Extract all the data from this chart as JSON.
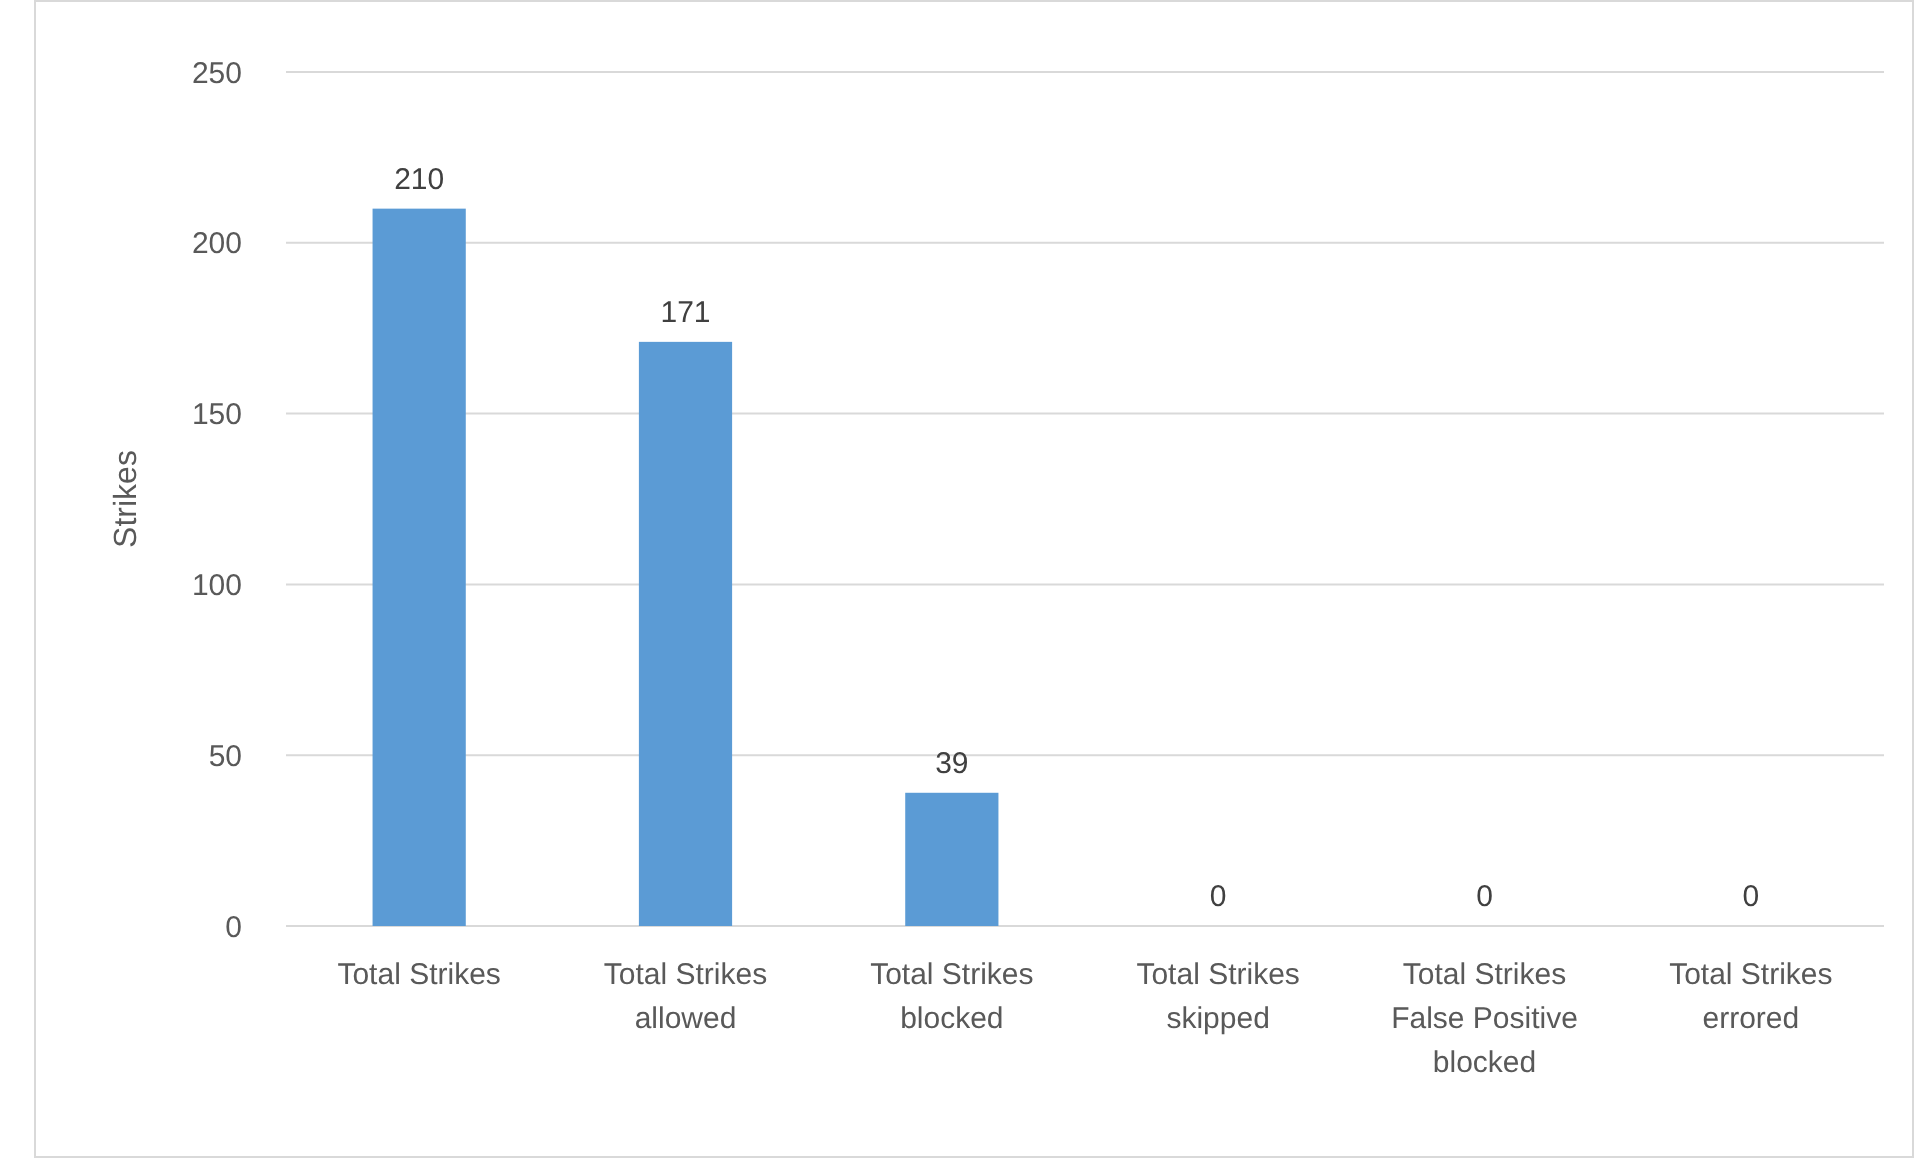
{
  "chart_data": {
    "type": "bar",
    "ylabel": "Strikes",
    "categories": [
      "Total Strikes",
      "Total Strikes allowed",
      "Total Strikes blocked",
      "Total Strikes skipped",
      "Total Strikes False Positive blocked",
      "Total Strikes errored"
    ],
    "values": [
      210,
      171,
      39,
      0,
      0,
      0
    ],
    "color": "#5b9bd5",
    "ylim": [
      0,
      250
    ],
    "yticks": [
      0,
      50,
      100,
      150,
      200,
      250
    ],
    "grid": "y",
    "data_labels": true
  }
}
